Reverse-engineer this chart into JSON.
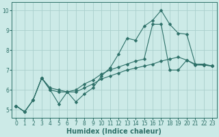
{
  "xlabel": "Humidex (Indice chaleur)",
  "xlim": [
    -0.5,
    23.5
  ],
  "ylim": [
    4.6,
    10.4
  ],
  "bg_color": "#cceae7",
  "grid_color": "#aacfcc",
  "line_color": "#2d7068",
  "series": [
    {
      "x": [
        0,
        1,
        2,
        3,
        4,
        5,
        6,
        7,
        8,
        9,
        10,
        11,
        12,
        13,
        14,
        15,
        16,
        17,
        18,
        19,
        20,
        21,
        22,
        23
      ],
      "y": [
        5.2,
        4.9,
        5.5,
        6.6,
        6.0,
        5.3,
        5.9,
        5.4,
        5.8,
        6.1,
        6.7,
        7.1,
        7.8,
        8.6,
        8.5,
        9.2,
        9.5,
        10.0,
        9.3,
        8.85,
        8.8,
        7.3,
        7.3,
        7.2
      ]
    },
    {
      "x": [
        0,
        1,
        2,
        3,
        4,
        5,
        6,
        7,
        8,
        9,
        10,
        11,
        12,
        13,
        14,
        15,
        16,
        17,
        18,
        19,
        20,
        21,
        22,
        23
      ],
      "y": [
        5.2,
        4.9,
        5.5,
        6.6,
        6.1,
        6.0,
        5.9,
        6.0,
        6.3,
        6.5,
        6.8,
        7.0,
        7.15,
        7.3,
        7.45,
        7.55,
        9.3,
        9.3,
        7.0,
        7.0,
        7.5,
        7.25,
        7.25,
        7.2
      ]
    },
    {
      "x": [
        0,
        1,
        2,
        3,
        4,
        5,
        6,
        7,
        8,
        9,
        10,
        11,
        12,
        13,
        14,
        15,
        16,
        17,
        18,
        19,
        20,
        21,
        22,
        23
      ],
      "y": [
        5.2,
        4.9,
        5.5,
        6.6,
        6.0,
        5.9,
        5.9,
        5.9,
        6.1,
        6.3,
        6.55,
        6.7,
        6.85,
        7.0,
        7.1,
        7.2,
        7.3,
        7.45,
        7.55,
        7.65,
        7.5,
        7.3,
        7.25,
        7.2
      ]
    }
  ],
  "xticks": [
    0,
    1,
    2,
    3,
    4,
    5,
    6,
    7,
    8,
    9,
    10,
    11,
    12,
    13,
    14,
    15,
    16,
    17,
    18,
    19,
    20,
    21,
    22,
    23
  ],
  "yticks": [
    5,
    6,
    7,
    8,
    9,
    10
  ],
  "tick_fontsize": 5.5,
  "label_fontsize": 7.0,
  "marker": "D",
  "markersize": 2.5,
  "linewidth": 0.8
}
